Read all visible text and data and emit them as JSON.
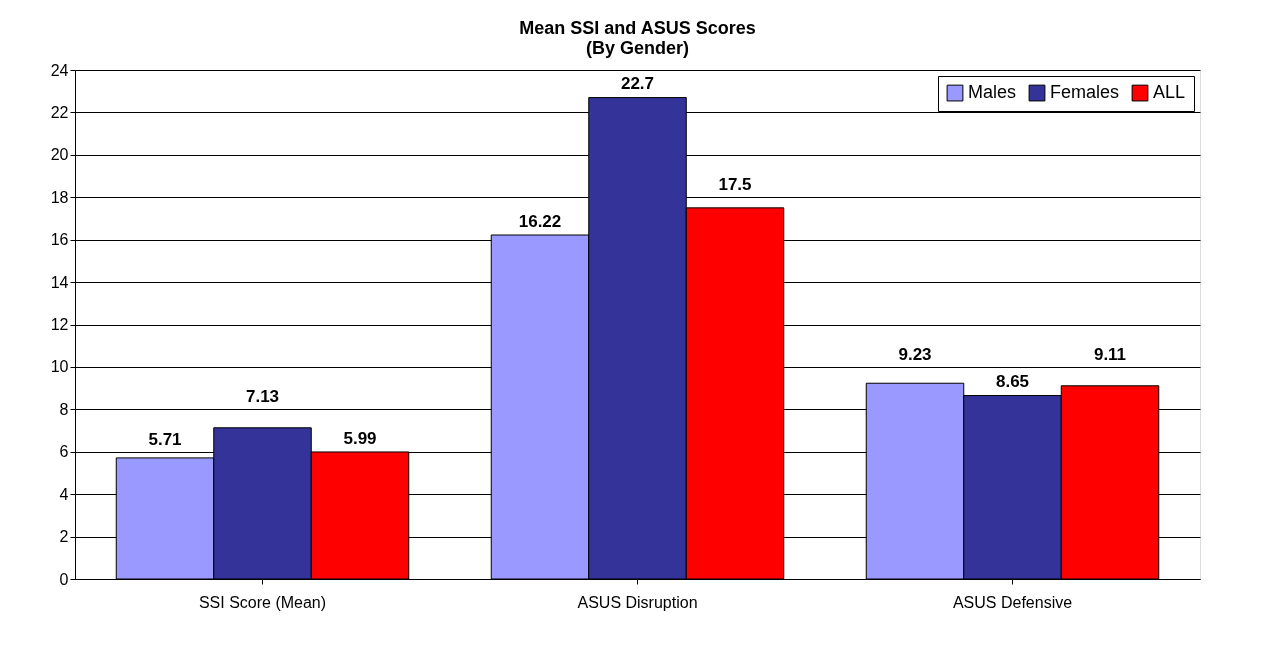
{
  "chart_data": {
    "type": "bar",
    "title": "Mean SSI and ASUS Scores",
    "subtitle": "(By Gender)",
    "categories": [
      "SSI Score (Mean)",
      "ASUS Disruption",
      "ASUS Defensive"
    ],
    "series": [
      {
        "name": "Males",
        "color": "#9999ff",
        "values": [
          5.71,
          16.22,
          9.23
        ]
      },
      {
        "name": "Females",
        "color": "#333399",
        "values": [
          7.13,
          22.7,
          8.65
        ]
      },
      {
        "name": "ALL",
        "color": "#ff0000",
        "values": [
          5.99,
          17.5,
          9.11
        ]
      }
    ],
    "ylim": [
      0,
      24
    ],
    "yticks": [
      0,
      2,
      4,
      6,
      8,
      10,
      12,
      14,
      16,
      18,
      20,
      22,
      24
    ],
    "grid": "y",
    "legend": "top right",
    "data_labels": true
  }
}
